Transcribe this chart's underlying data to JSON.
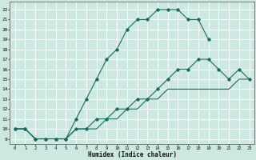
{
  "xlabel": "Humidex (Indice chaleur)",
  "bg_color": "#cce8e0",
  "grid_color": "#ffffff",
  "line_color": "#1a6b5e",
  "xlim": [
    -0.5,
    23.5
  ],
  "ylim": [
    8.5,
    22.8
  ],
  "yticks": [
    9,
    10,
    11,
    12,
    13,
    14,
    15,
    16,
    17,
    18,
    19,
    20,
    21,
    22
  ],
  "xticks": [
    0,
    1,
    2,
    3,
    4,
    5,
    6,
    7,
    8,
    9,
    10,
    11,
    12,
    13,
    14,
    15,
    16,
    17,
    18,
    19,
    20,
    21,
    22,
    23
  ],
  "line1_x": [
    0,
    1,
    2,
    3,
    4,
    5,
    6,
    7,
    8,
    9,
    10,
    11,
    12,
    13,
    14,
    15,
    16,
    17,
    18,
    19
  ],
  "line1_y": [
    10,
    10,
    9,
    9,
    9,
    9,
    11,
    13,
    15,
    17,
    18,
    20,
    21,
    21,
    22,
    22,
    22,
    21,
    21,
    19
  ],
  "line2_x": [
    0,
    1,
    2,
    3,
    4,
    5,
    6,
    7,
    8,
    9,
    10,
    11,
    12,
    13,
    14,
    15,
    16,
    17,
    18,
    19,
    20,
    21,
    22,
    23
  ],
  "line2_y": [
    10,
    10,
    9,
    9,
    9,
    9,
    10,
    10,
    11,
    11,
    12,
    12,
    13,
    13,
    14,
    15,
    16,
    16,
    17,
    17,
    16,
    15,
    16,
    15
  ],
  "line3_x": [
    0,
    1,
    2,
    3,
    4,
    5,
    6,
    7,
    8,
    9,
    10,
    11,
    12,
    13,
    14,
    15,
    16,
    17,
    18,
    19,
    20,
    21,
    22,
    23
  ],
  "line3_y": [
    10,
    10,
    9,
    9,
    9,
    9,
    10,
    10,
    10,
    11,
    11,
    12,
    12,
    13,
    13,
    14,
    14,
    14,
    14,
    14,
    14,
    14,
    15,
    15
  ]
}
